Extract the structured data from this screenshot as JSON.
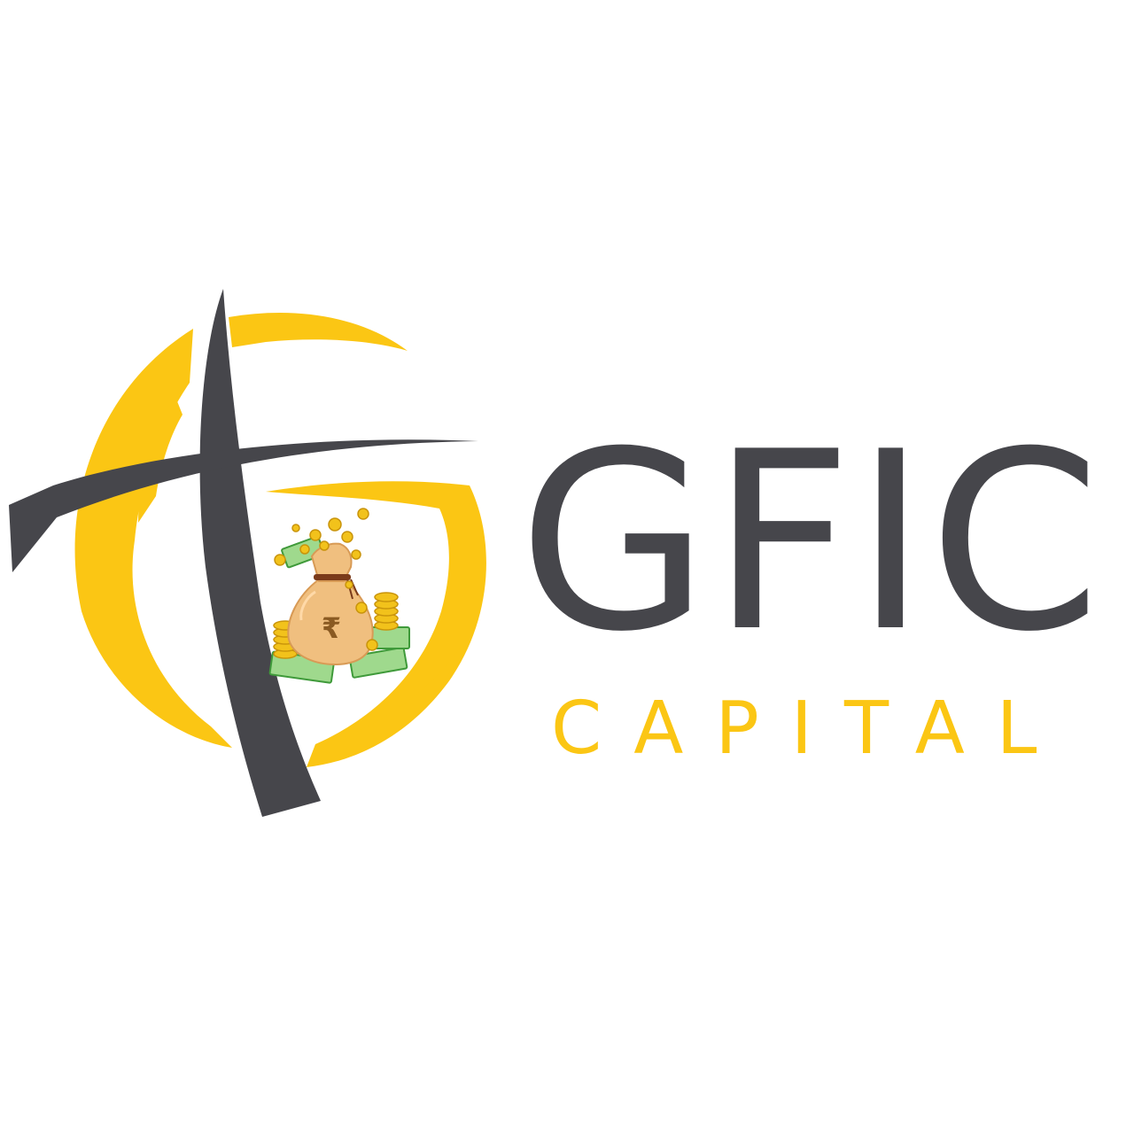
{
  "logo": {
    "brand_name": "GFIC",
    "tagline": "CAPITAL",
    "emblem_icon": "globe-cross-money-bag-icon",
    "currency_symbol": "₹",
    "colors": {
      "gold": "#fbc614",
      "charcoal": "#46464b",
      "bag": "#f0bf7f",
      "bag_shadow": "#d89a55",
      "coin": "#f2c21b",
      "coin_edge": "#c9940b",
      "cash": "#9fd98d",
      "cash_edge": "#3f9a3a",
      "background": "#ffffff"
    }
  }
}
